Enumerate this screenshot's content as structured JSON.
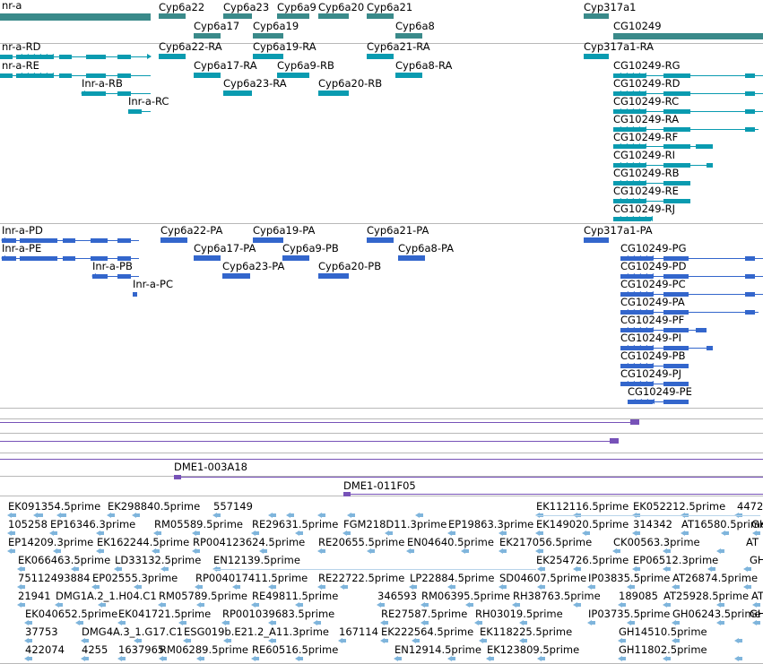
{
  "colors": {
    "gene": "#3a8a8a",
    "transcript": "#0a9bb0",
    "protein": "#3366cc",
    "clone": "#7752b8",
    "est": "#7fb5dc"
  },
  "tracks": {
    "genes": [
      {
        "label": "nr-a"
      },
      {
        "label": "Cyp6a22"
      },
      {
        "label": "Cyp6a23"
      },
      {
        "label": "Cyp6a9"
      },
      {
        "label": "Cyp6a20"
      },
      {
        "label": "Cyp6a21"
      },
      {
        "label": "Cyp317a1"
      },
      {
        "label": "Cyp6a17"
      },
      {
        "label": "Cyp6a19"
      },
      {
        "label": "Cyp6a8"
      },
      {
        "label": "CG10249"
      }
    ],
    "transcripts": [
      {
        "label": "nr-a-RD"
      },
      {
        "label": "Cyp6a22-RA"
      },
      {
        "label": "Cyp6a19-RA"
      },
      {
        "label": "Cyp6a21-RA"
      },
      {
        "label": "Cyp317a1-RA"
      },
      {
        "label": "nr-a-RE"
      },
      {
        "label": "Cyp6a17-RA"
      },
      {
        "label": "Cyp6a9-RB"
      },
      {
        "label": "Cyp6a8-RA"
      },
      {
        "label": "CG10249-RG"
      },
      {
        "label": "Inr-a-RB"
      },
      {
        "label": "Cyp6a23-RA"
      },
      {
        "label": "Cyp6a20-RB"
      },
      {
        "label": "CG10249-RD"
      },
      {
        "label": "Inr-a-RC"
      },
      {
        "label": "CG10249-RC"
      },
      {
        "label": "CG10249-RA"
      },
      {
        "label": "CG10249-RF"
      },
      {
        "label": "CG10249-RI"
      },
      {
        "label": "CG10249-RB"
      },
      {
        "label": "CG10249-RE"
      },
      {
        "label": "CG10249-RJ"
      }
    ],
    "proteins": [
      {
        "label": "Inr-a-PD"
      },
      {
        "label": "Cyp6a22-PA"
      },
      {
        "label": "Cyp6a19-PA"
      },
      {
        "label": "Cyp6a21-PA"
      },
      {
        "label": "Cyp317a1-PA"
      },
      {
        "label": "Inr-a-PE"
      },
      {
        "label": "Cyp6a17-PA"
      },
      {
        "label": "Cyp6a9-PB"
      },
      {
        "label": "Cyp6a8-PA"
      },
      {
        "label": "CG10249-PG"
      },
      {
        "label": "Inr-a-PB"
      },
      {
        "label": "Cyp6a23-PA"
      },
      {
        "label": "Cyp6a20-PB"
      },
      {
        "label": "CG10249-PD"
      },
      {
        "label": "Inr-a-PC"
      },
      {
        "label": "CG10249-PC"
      },
      {
        "label": "CG10249-PA"
      },
      {
        "label": "CG10249-PF"
      },
      {
        "label": "CG10249-PI"
      },
      {
        "label": "CG10249-PB"
      },
      {
        "label": "CG10249-PJ"
      },
      {
        "label": "CG10249-PE"
      }
    ],
    "clones": [
      {
        "label": "DME1-003A18"
      },
      {
        "label": "DME1-011F05"
      }
    ],
    "ests": [
      {
        "label": "EK091354.5prime"
      },
      {
        "label": "EK298840.5prime"
      },
      {
        "label": "557149"
      },
      {
        "label": "EK112116.5prime"
      },
      {
        "label": "EK052212.5prime"
      },
      {
        "label": "4472"
      },
      {
        "label": "105258"
      },
      {
        "label": "EP16346.3prime"
      },
      {
        "label": "RM05589.5prime"
      },
      {
        "label": "RE29631.5prime"
      },
      {
        "label": "FGM218D11.3prime"
      },
      {
        "label": "EP19863.3prime"
      },
      {
        "label": "EK149020.5prime"
      },
      {
        "label": "314342"
      },
      {
        "label": "AT16580.5prime"
      },
      {
        "label": "GH"
      },
      {
        "label": "EP14209.3prime"
      },
      {
        "label": "EK162244.5prime"
      },
      {
        "label": "RP004123624.5prime"
      },
      {
        "label": "RE20655.5prime"
      },
      {
        "label": "EN04640.5prime"
      },
      {
        "label": "EK217056.5prime"
      },
      {
        "label": "CK00563.3prime"
      },
      {
        "label": "AT"
      },
      {
        "label": "EK066463.5prime"
      },
      {
        "label": "LD33132.5prime"
      },
      {
        "label": "EN12139.5prime"
      },
      {
        "label": "EK254726.5prime"
      },
      {
        "label": "EP06512.3prime"
      },
      {
        "label": "GH"
      },
      {
        "label": "75112493884"
      },
      {
        "label": "EP02555.3prime"
      },
      {
        "label": "RP004017411.5prime"
      },
      {
        "label": "RE22722.5prime"
      },
      {
        "label": "LP22884.5prime"
      },
      {
        "label": "SD04607.5prime"
      },
      {
        "label": "IP03835.5prime"
      },
      {
        "label": "AT26874.5prime"
      },
      {
        "label": "21941"
      },
      {
        "label": "DMG1A.2_1.H04.C1"
      },
      {
        "label": "RM05789.5prime"
      },
      {
        "label": "RE49811.5prime"
      },
      {
        "label": "346593"
      },
      {
        "label": "RM06395.5prime"
      },
      {
        "label": "RH38763.5prime"
      },
      {
        "label": "189085"
      },
      {
        "label": "AT25928.5prime"
      },
      {
        "label": "AT"
      },
      {
        "label": "EK040652.5prime"
      },
      {
        "label": "EK041721.5prime"
      },
      {
        "label": "RP001039683.5prime"
      },
      {
        "label": "RE27587.5prime"
      },
      {
        "label": "RH03019.5prime"
      },
      {
        "label": "IP03735.5prime"
      },
      {
        "label": "GH06243.5prime"
      },
      {
        "label": "GH"
      },
      {
        "label": "37753"
      },
      {
        "label": "DMG4A.3_1.G17.C1"
      },
      {
        "label": "ESG019b.E21.2_A11.3prime"
      },
      {
        "label": "167114"
      },
      {
        "label": "EK222564.5prime"
      },
      {
        "label": "EK118225.5prime"
      },
      {
        "label": "GH14510.5prime"
      },
      {
        "label": "422074"
      },
      {
        "label": "4255"
      },
      {
        "label": "1637965"
      },
      {
        "label": "RM06289.5prime"
      },
      {
        "label": "RE60516.5prime"
      },
      {
        "label": "EN12914.5prime"
      },
      {
        "label": "EK123809.5prime"
      },
      {
        "label": "GH11802.5prime"
      }
    ]
  }
}
